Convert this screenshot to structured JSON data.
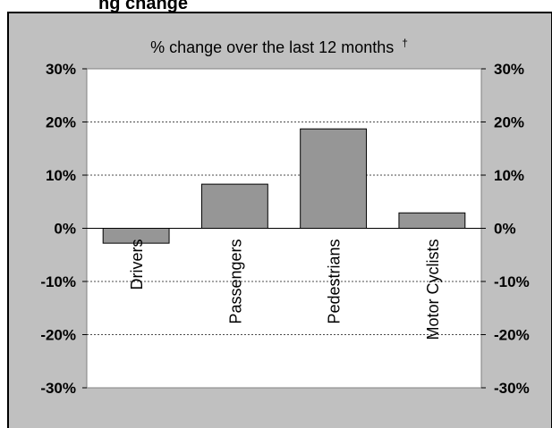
{
  "page": {
    "heading_fragment": "ng change"
  },
  "chart_data": {
    "type": "bar",
    "title": "% change over the last 12 months",
    "title_marker": "†",
    "categories": [
      "Drivers",
      "Passengers",
      "Pedestrians",
      "Motor Cyclists"
    ],
    "values": [
      -2.8,
      8.3,
      18.7,
      2.9
    ],
    "ylim": [
      -30,
      30
    ],
    "yticks": [
      30,
      20,
      10,
      0,
      -10,
      -20,
      -30
    ],
    "ytick_labels": [
      "30%",
      "20%",
      "10%",
      "0%",
      "-10%",
      "-20%",
      "-30%"
    ],
    "y_axis_both_sides": true,
    "grid": "horizontal-dashed",
    "legend": "none",
    "colors": {
      "panel_bg": "#c0c0c0",
      "plot_bg": "#ffffff",
      "bar_fill": "#969696",
      "bar_stroke": "#000000",
      "grid": "#000000"
    }
  }
}
